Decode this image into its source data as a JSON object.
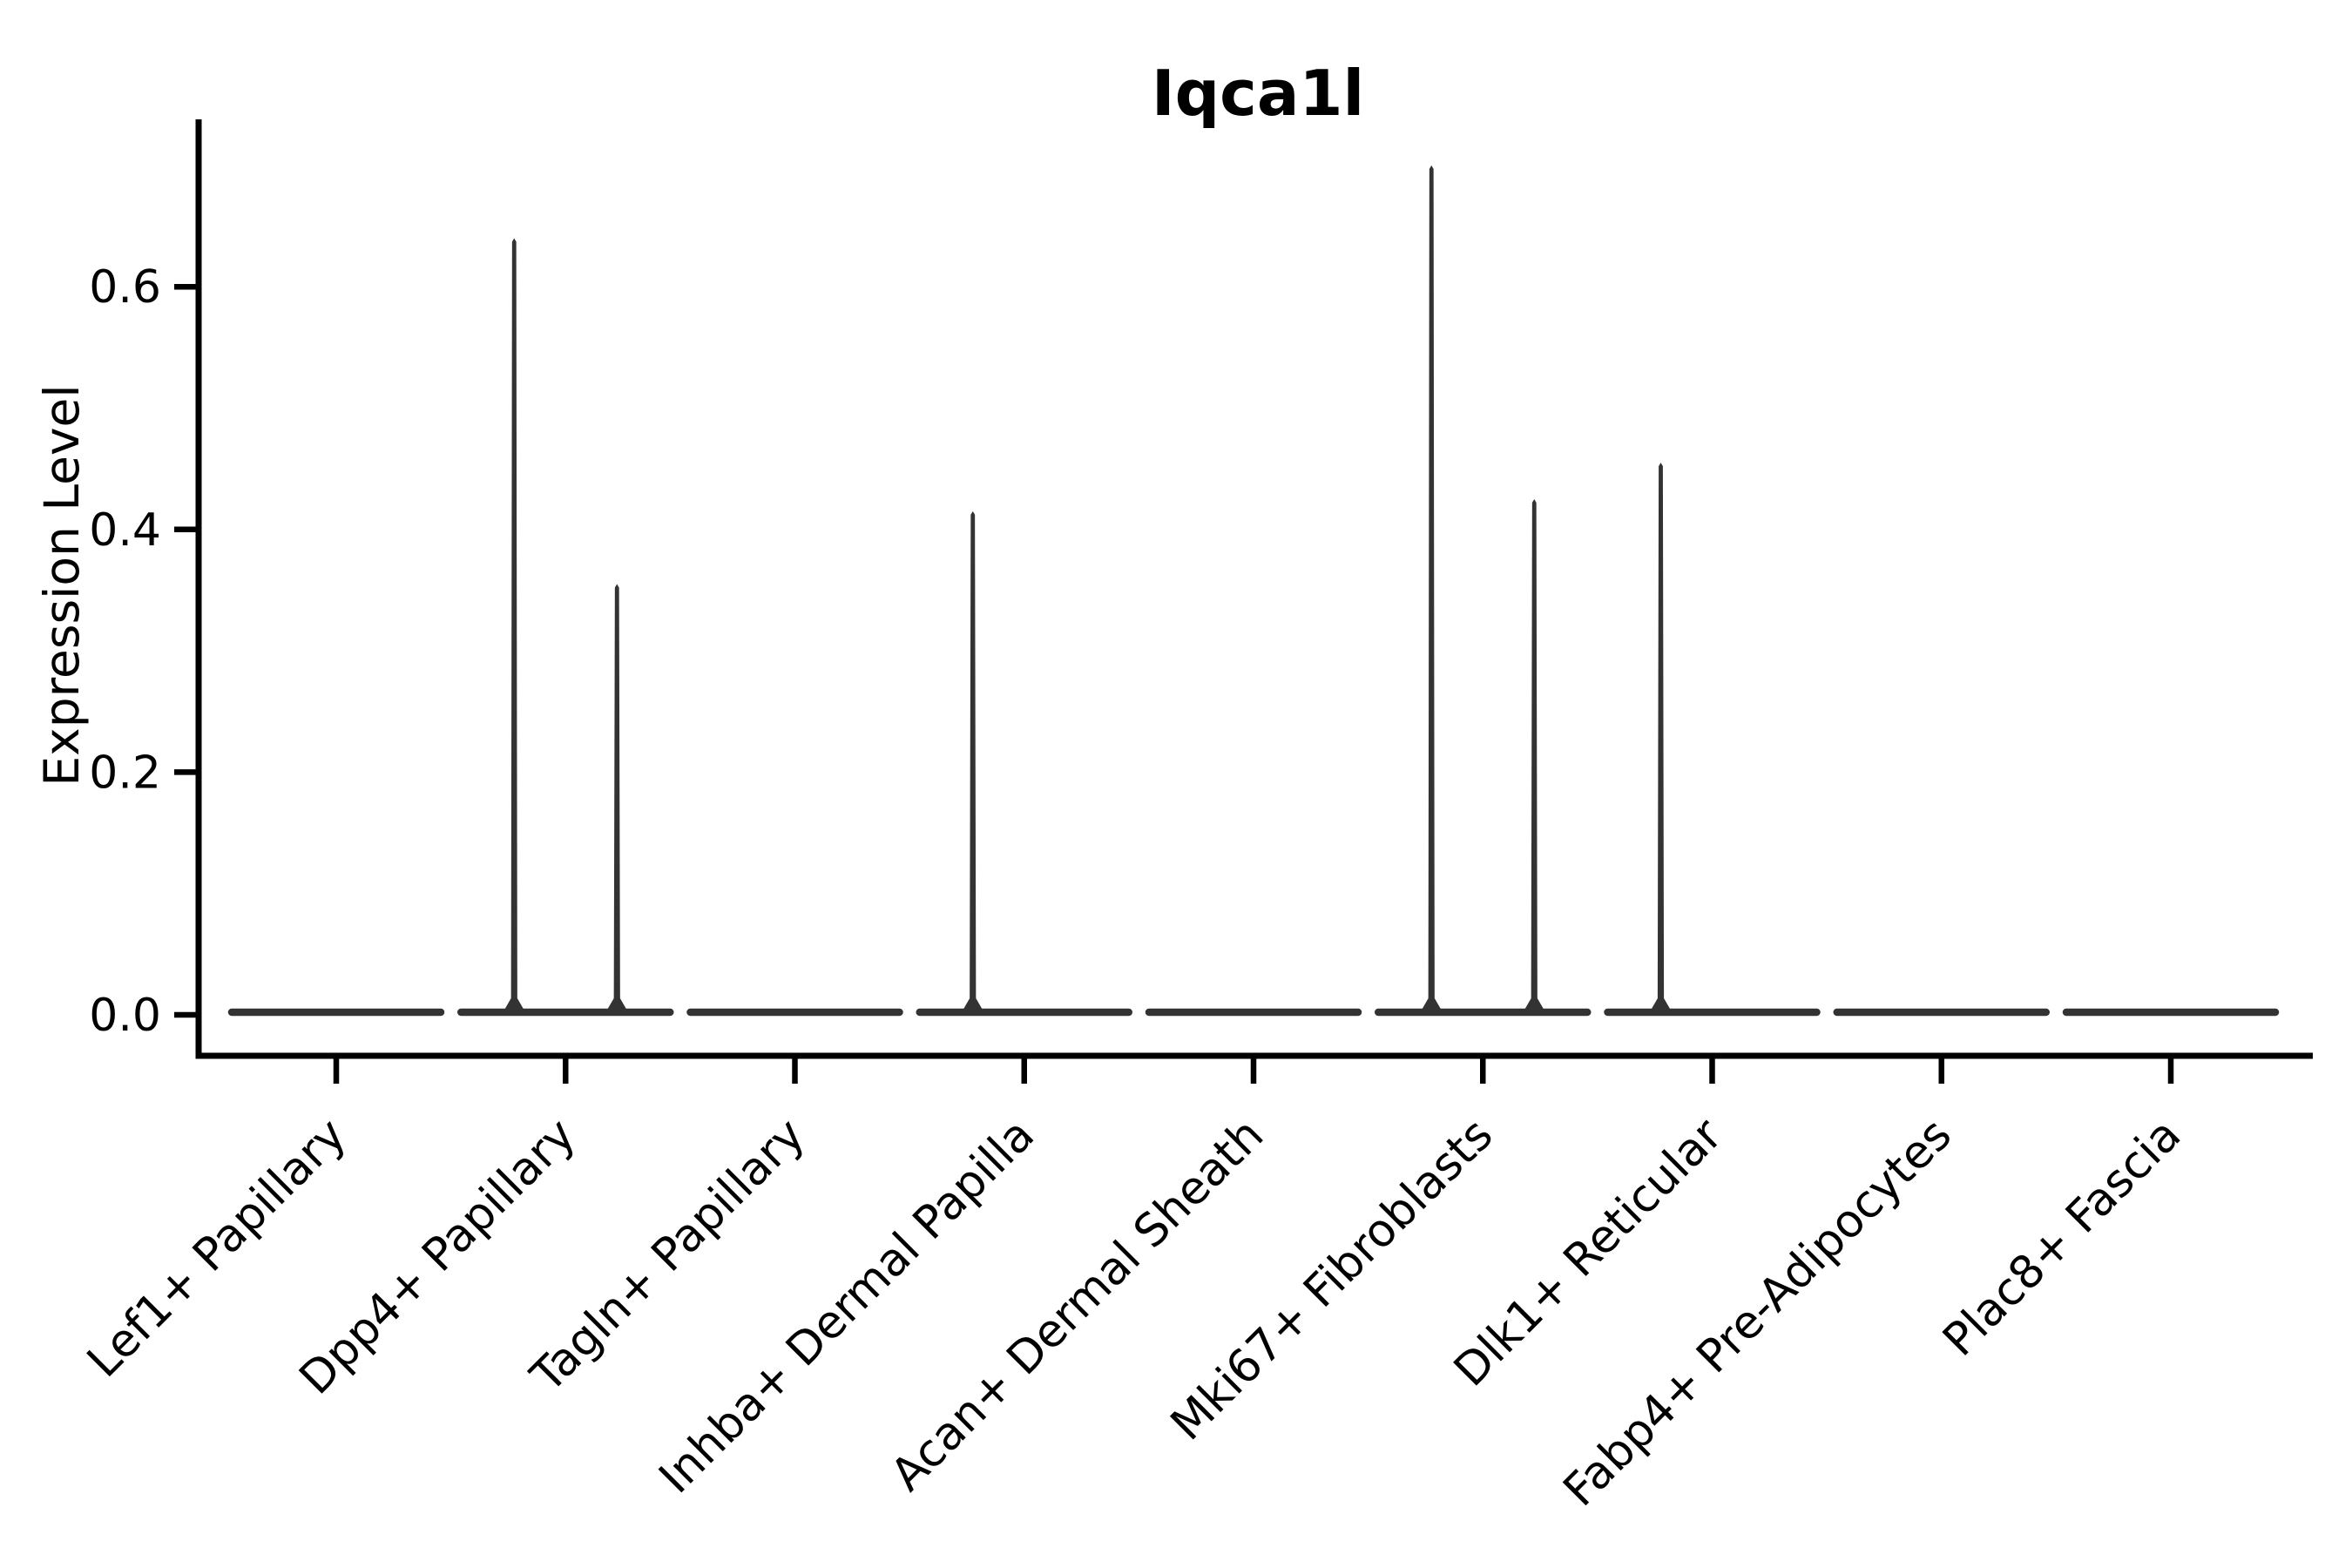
{
  "figure": {
    "title": "Iqca1l",
    "ylabel": "Expression Level"
  },
  "chart_data": {
    "type": "violin",
    "title": "Iqca1l",
    "xlabel": "",
    "ylabel": "Expression Level",
    "ylim": [
      -0.034,
      0.738
    ],
    "grid": false,
    "legend": false,
    "y_ticks": [
      {
        "value": 0.0,
        "label": "0.0"
      },
      {
        "value": 0.2,
        "label": "0.2"
      },
      {
        "value": 0.4,
        "label": "0.4"
      },
      {
        "value": 0.6,
        "label": "0.6"
      }
    ],
    "categories": [
      "Lef1+ Papillary",
      "Dpp4+ Papillary",
      "Tagln+ Papillary",
      "Inhba+ Dermal Papilla",
      "Acan+ Dermal Sheath",
      "Mki67+ Fibroblasts",
      "Dlk1+ Reticular",
      "Fabp4+ Pre-Adipocytes",
      "Plac8+ Fascia"
    ],
    "violins": [
      {
        "category": "Lef1+ Papillary",
        "baseline": 0.0,
        "spikes": []
      },
      {
        "category": "Dpp4+ Papillary",
        "baseline": 0.0,
        "spikes": [
          {
            "side": "left",
            "max": 0.64
          },
          {
            "side": "right",
            "max": 0.355
          }
        ]
      },
      {
        "category": "Tagln+ Papillary",
        "baseline": 0.0,
        "spikes": []
      },
      {
        "category": "Inhba+ Dermal Papilla",
        "baseline": 0.0,
        "spikes": [
          {
            "side": "left",
            "max": 0.415
          }
        ]
      },
      {
        "category": "Acan+ Dermal Sheath",
        "baseline": 0.0,
        "spikes": []
      },
      {
        "category": "Mki67+ Fibroblasts",
        "baseline": 0.0,
        "spikes": [
          {
            "side": "left",
            "max": 0.7
          },
          {
            "side": "right",
            "max": 0.425
          }
        ]
      },
      {
        "category": "Dlk1+ Reticular",
        "baseline": 0.0,
        "spikes": [
          {
            "side": "left",
            "max": 0.455
          }
        ]
      },
      {
        "category": "Fabp4+ Pre-Adipocytes",
        "baseline": 0.0,
        "spikes": []
      },
      {
        "category": "Plac8+ Fascia",
        "baseline": 0.0,
        "spikes": []
      }
    ],
    "colors": {
      "violin": "#333333",
      "axis": "#000000",
      "text": "#000000",
      "background": "#ffffff"
    }
  }
}
